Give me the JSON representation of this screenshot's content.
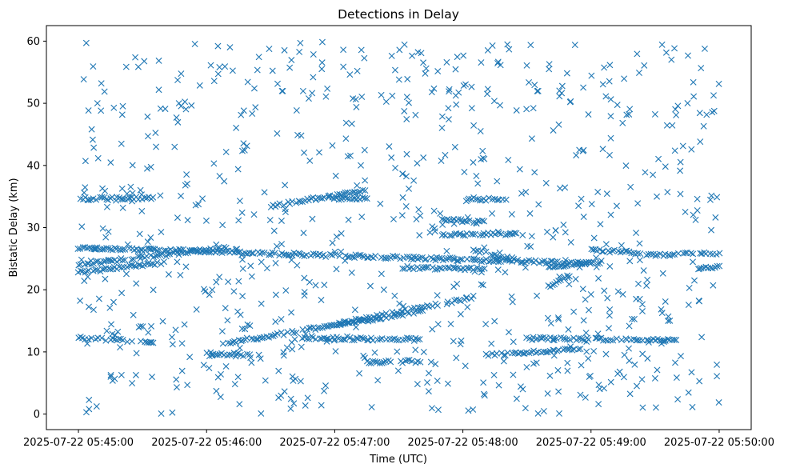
{
  "chart_data": {
    "type": "scatter",
    "title": "Detections in Delay",
    "xlabel": "Time (UTC)",
    "ylabel": "Bistatic Delay (km)",
    "x_unit": "seconds",
    "x_ticks": [
      {
        "t": "2025-07-22 05:45:00",
        "label": "2025-07-22 05:45:00"
      },
      {
        "t": "2025-07-22 05:46:00",
        "label": "2025-07-22 05:46:00"
      },
      {
        "t": "2025-07-22 05:47:00",
        "label": "2025-07-22 05:47:00"
      },
      {
        "t": "2025-07-22 05:48:00",
        "label": "2025-07-22 05:48:00"
      },
      {
        "t": "2025-07-22 05:49:00",
        "label": "2025-07-22 05:49:00"
      },
      {
        "t": "2025-07-22 05:50:00",
        "label": "2025-07-22 05:50:00"
      }
    ],
    "xlim": [
      "2025-07-22 05:44:45",
      "2025-07-22 05:50:15"
    ],
    "ylim": [
      -2.5,
      62.5
    ],
    "y_ticks": [
      0,
      10,
      20,
      30,
      40,
      50,
      60
    ],
    "grid": false,
    "marker": "x",
    "color": "#1f77b4",
    "tracks": [
      {
        "t0": "2025-07-22 05:45:00",
        "t1": "2025-07-22 05:45:35",
        "y0": 12.3,
        "y1": 11.6
      },
      {
        "t0": "2025-07-22 05:45:00",
        "t1": "2025-07-22 05:45:35",
        "y0": 34.6,
        "y1": 34.8
      },
      {
        "t0": "2025-07-22 05:45:00",
        "t1": "2025-07-22 05:49:00",
        "y0": 26.8,
        "y1": 24.2
      },
      {
        "t0": "2025-07-22 05:45:00",
        "t1": "2025-07-22 05:46:10",
        "y0": 24.0,
        "y1": 26.8
      },
      {
        "t0": "2025-07-22 05:45:00",
        "t1": "2025-07-22 05:45:40",
        "y0": 22.8,
        "y1": 24.4
      },
      {
        "t0": "2025-07-22 05:46:10",
        "t1": "2025-07-22 05:47:40",
        "y0": 11.5,
        "y1": 16.5
      },
      {
        "t0": "2025-07-22 05:47:00",
        "t1": "2025-07-22 05:48:05",
        "y0": 14.4,
        "y1": 18.8
      },
      {
        "t0": "2025-07-22 05:46:45",
        "t1": "2025-07-22 05:47:40",
        "y0": 12.2,
        "y1": 12.0
      },
      {
        "t0": "2025-07-22 05:46:00",
        "t1": "2025-07-22 05:46:20",
        "y0": 9.8,
        "y1": 9.5
      },
      {
        "t0": "2025-07-22 05:48:10",
        "t1": "2025-07-22 05:48:55",
        "y0": 9.5,
        "y1": 10.4
      },
      {
        "t0": "2025-07-22 05:48:30",
        "t1": "2025-07-22 05:49:40",
        "y0": 12.2,
        "y1": 11.8
      },
      {
        "t0": "2025-07-22 05:46:30",
        "t1": "2025-07-22 05:47:15",
        "y0": 33.5,
        "y1": 36.0
      },
      {
        "t0": "2025-07-22 05:47:00",
        "t1": "2025-07-22 05:47:15",
        "y0": 34.7,
        "y1": 34.8
      },
      {
        "t0": "2025-07-22 05:47:50",
        "t1": "2025-07-22 05:48:10",
        "y0": 31.2,
        "y1": 31.0
      },
      {
        "t0": "2025-07-22 05:47:50",
        "t1": "2025-07-22 05:48:25",
        "y0": 28.8,
        "y1": 29.0
      },
      {
        "t0": "2025-07-22 05:48:00",
        "t1": "2025-07-22 05:48:20",
        "y0": 34.6,
        "y1": 34.6
      },
      {
        "t0": "2025-07-22 05:48:40",
        "t1": "2025-07-22 05:49:05",
        "y0": 23.6,
        "y1": 24.5
      },
      {
        "t0": "2025-07-22 05:49:00",
        "t1": "2025-07-22 05:49:30",
        "y0": 26.5,
        "y1": 25.7
      },
      {
        "t0": "2025-07-22 05:49:30",
        "t1": "2025-07-22 05:50:00",
        "y0": 25.6,
        "y1": 25.9
      },
      {
        "t0": "2025-07-22 05:47:30",
        "t1": "2025-07-22 05:48:10",
        "y0": 23.6,
        "y1": 23.3
      },
      {
        "t0": "2025-07-22 05:48:40",
        "t1": "2025-07-22 05:48:50",
        "y0": 20.5,
        "y1": 22.2
      },
      {
        "t0": "2025-07-22 05:49:50",
        "t1": "2025-07-22 05:50:00",
        "y0": 23.5,
        "y1": 23.6
      },
      {
        "t0": "2025-07-22 05:47:15",
        "t1": "2025-07-22 05:47:40",
        "y0": 8.3,
        "y1": 8.5
      },
      {
        "t0": "2025-07-22 05:48:05",
        "t1": "2025-07-22 05:48:25",
        "y0": 26.3,
        "y1": 24.8
      }
    ],
    "noise": {
      "count": 780,
      "y_range": [
        0,
        60
      ]
    }
  }
}
